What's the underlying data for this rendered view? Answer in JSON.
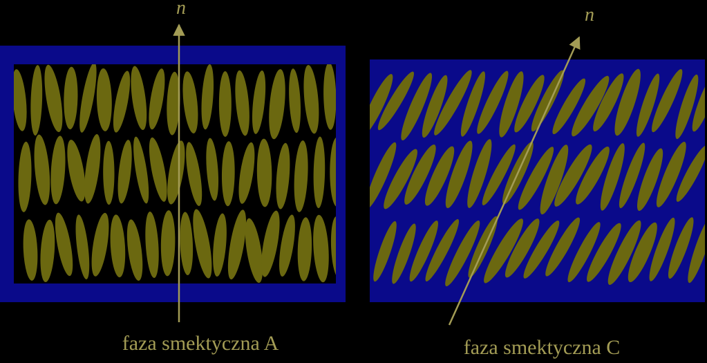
{
  "panels": [
    {
      "axis_label": "n",
      "caption": "faza smektyczna A"
    },
    {
      "axis_label": "n",
      "caption": "faza smektyczna C"
    }
  ]
}
